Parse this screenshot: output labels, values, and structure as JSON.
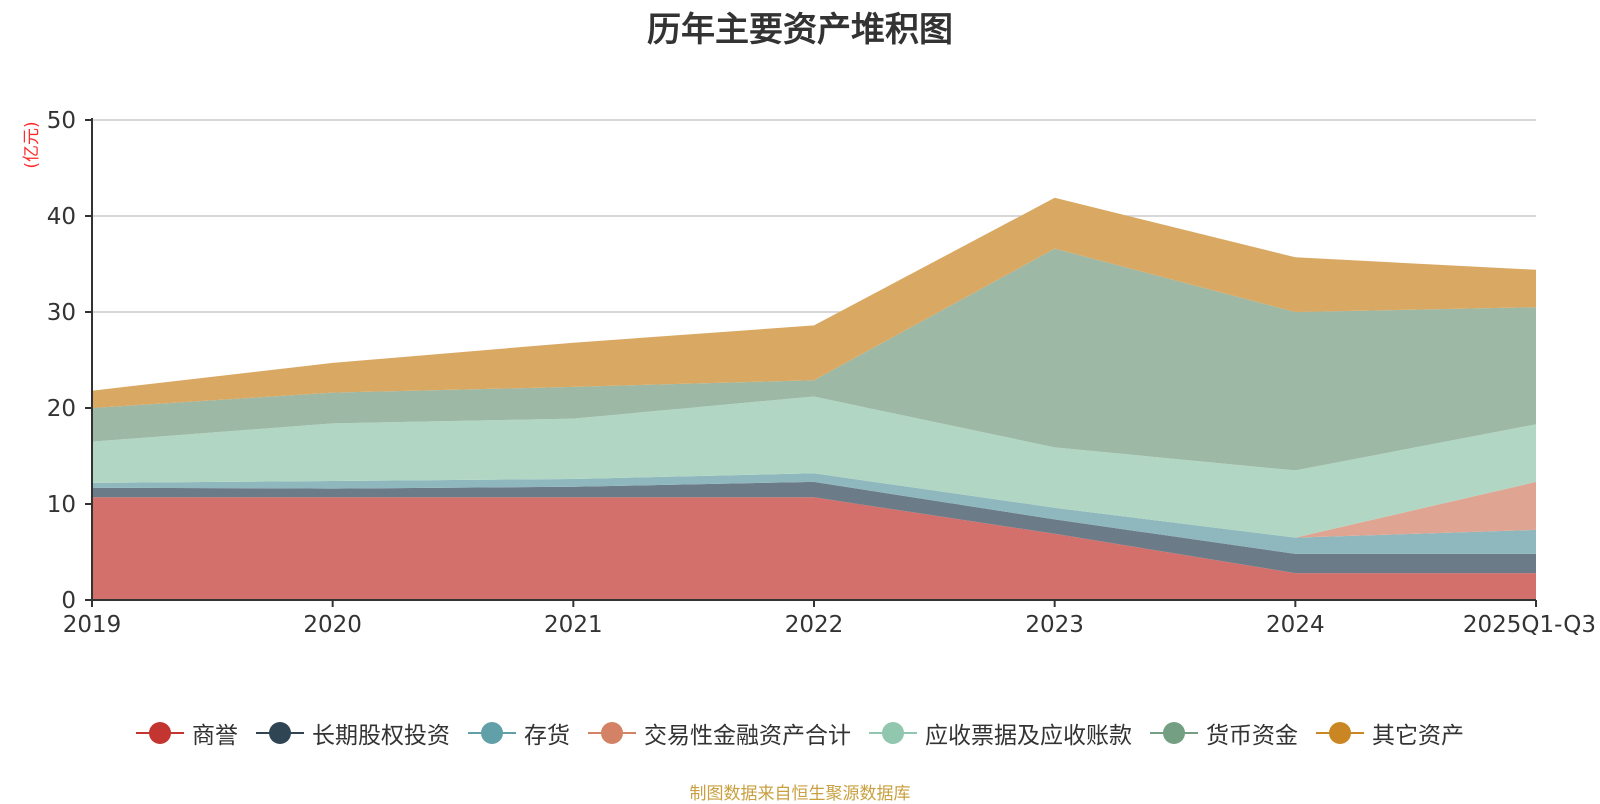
{
  "chart_data": {
    "type": "area",
    "stacked": true,
    "title": "历年主要资产堆积图",
    "ylabel": "(亿元)",
    "xlabel": "",
    "categories": [
      "2019",
      "2020",
      "2021",
      "2022",
      "2023",
      "2024",
      "2025Q1-Q3"
    ],
    "ylim": [
      0,
      50
    ],
    "yticks": [
      0,
      10,
      20,
      30,
      40,
      50
    ],
    "grid": true,
    "legend_position": "bottom",
    "series": [
      {
        "name": "商誉",
        "color": "#c23531",
        "fill": "#d4706c",
        "values": [
          10.7,
          10.7,
          10.7,
          10.7,
          6.9,
          2.8,
          2.8
        ]
      },
      {
        "name": "长期股权投资",
        "color": "#2f4554",
        "fill": "#6b7c88",
        "values": [
          1.0,
          0.9,
          1.1,
          1.6,
          1.5,
          2.0,
          2.0
        ]
      },
      {
        "name": "存货",
        "color": "#61a0a8",
        "fill": "#8fb8be",
        "values": [
          0.5,
          0.8,
          0.8,
          0.9,
          1.2,
          1.7,
          2.5
        ]
      },
      {
        "name": "交易性金融资产合计",
        "color": "#d48265",
        "fill": "#e0a592",
        "values": [
          0.0,
          0.0,
          0.0,
          0.0,
          0.0,
          0.0,
          5.0
        ]
      },
      {
        "name": "应收票据及应收账款",
        "color": "#91c7ae",
        "fill": "#b1d7c4",
        "values": [
          4.3,
          6.0,
          6.3,
          8.0,
          6.3,
          7.0,
          6.0
        ]
      },
      {
        "name": "货币资金",
        "color": "#749f83",
        "fill": "#9db8a4",
        "values": [
          3.5,
          3.2,
          3.3,
          1.7,
          20.7,
          16.5,
          12.2
        ]
      },
      {
        "name": "其它资产",
        "color": "#ca8622",
        "fill": "#d9a963",
        "values": [
          1.8,
          3.1,
          4.6,
          5.7,
          5.3,
          5.7,
          3.9
        ]
      }
    ]
  },
  "source_note": "制图数据来自恒生聚源数据库"
}
